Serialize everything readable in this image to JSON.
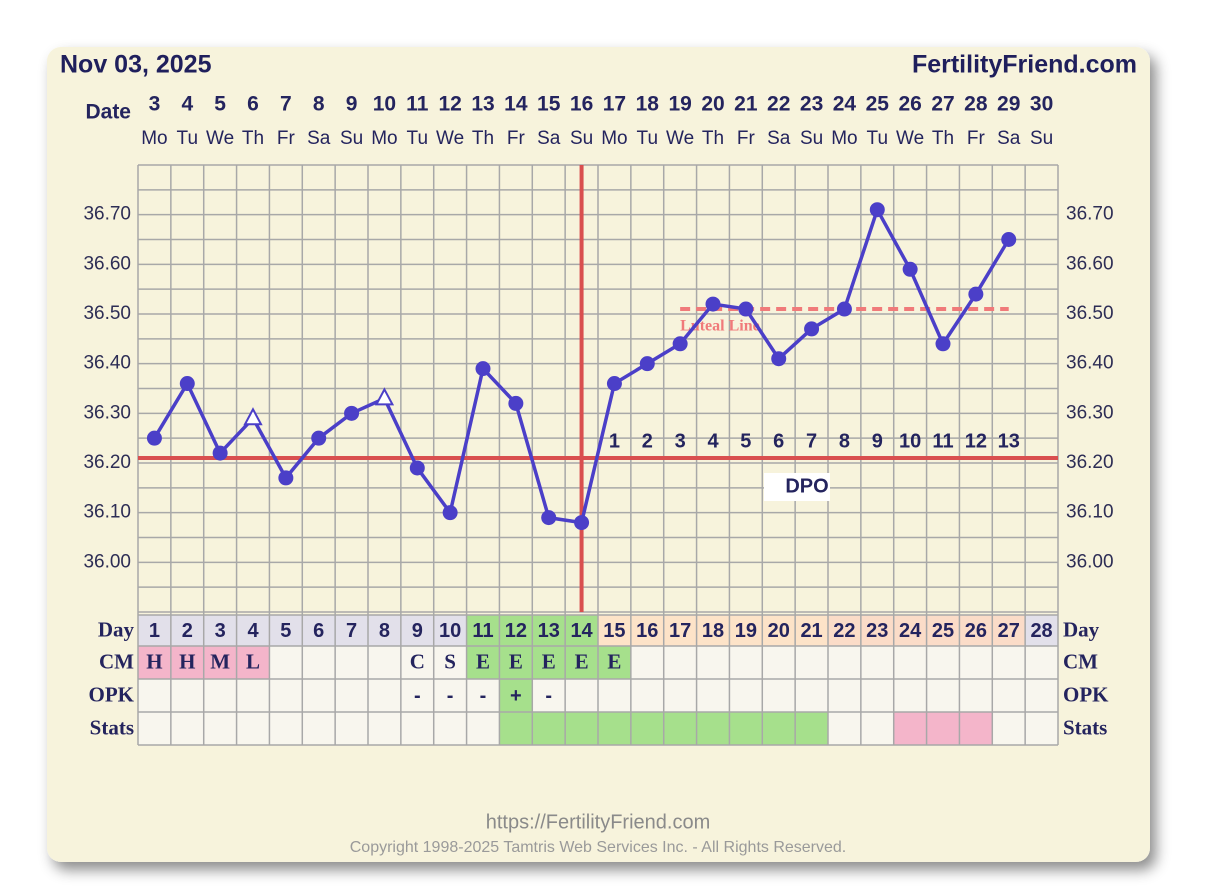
{
  "header": {
    "date": "Nov 03, 2025",
    "site": "FertilityFriend.com"
  },
  "chart_data": {
    "type": "line",
    "x_label": "Date",
    "dates": [
      3,
      4,
      5,
      6,
      7,
      8,
      9,
      10,
      11,
      12,
      13,
      14,
      15,
      16,
      17,
      18,
      19,
      20,
      21,
      22,
      23,
      24,
      25,
      26,
      27,
      28,
      29,
      30
    ],
    "weekdays": [
      "Mo",
      "Tu",
      "We",
      "Th",
      "Fr",
      "Sa",
      "Su",
      "Mo",
      "Tu",
      "We",
      "Th",
      "Fr",
      "Sa",
      "Su",
      "Mo",
      "Tu",
      "We",
      "Th",
      "Fr",
      "Sa",
      "Su",
      "Mo",
      "Tu",
      "We",
      "Th",
      "Fr",
      "Sa",
      "Su"
    ],
    "values": [
      36.25,
      36.36,
      36.22,
      36.29,
      36.17,
      36.25,
      36.3,
      36.33,
      36.19,
      36.1,
      36.39,
      36.32,
      36.09,
      36.08,
      36.36,
      36.4,
      36.44,
      36.52,
      36.51,
      36.41,
      36.47,
      36.51,
      36.71,
      36.59,
      36.44,
      36.54,
      36.65,
      null
    ],
    "markers": [
      "circle",
      "circle",
      "circle",
      "triangle",
      "circle",
      "circle",
      "circle",
      "triangle",
      "circle",
      "circle",
      "circle",
      "circle",
      "circle",
      "circle",
      "circle",
      "circle",
      "circle",
      "circle",
      "circle",
      "circle",
      "circle",
      "circle",
      "circle",
      "circle",
      "circle",
      "circle",
      "circle",
      null
    ],
    "color": "#4b3fc8",
    "ylim": [
      35.9,
      36.8
    ],
    "yticks": [
      {
        "value": 36.0,
        "label": "36.00"
      },
      {
        "value": 36.1,
        "label": "36.10"
      },
      {
        "value": 36.2,
        "label": "36.20"
      },
      {
        "value": 36.3,
        "label": "36.30"
      },
      {
        "value": 36.4,
        "label": "36.40"
      },
      {
        "value": 36.5,
        "label": "36.50"
      },
      {
        "value": 36.6,
        "label": "36.60"
      },
      {
        "value": 36.7,
        "label": "36.70"
      }
    ],
    "grid_lines": [
      35.9,
      35.95,
      36.0,
      36.05,
      36.1,
      36.15,
      36.2,
      36.25,
      36.3,
      36.35,
      36.4,
      36.45,
      36.5,
      36.55,
      36.6,
      36.65,
      36.7,
      36.75,
      36.8
    ],
    "grid_color": "#a8a8a8",
    "coverline": 36.21,
    "ovulation_day": 14,
    "line_color": "#d94f4f",
    "luteal_line": {
      "label": "Luteal Line",
      "value": 36.51,
      "days": [
        17,
        27
      ],
      "color": "#f07a7a"
    },
    "dpo": {
      "label": "DPO",
      "numbers": [
        1,
        2,
        3,
        4,
        5,
        6,
        7,
        8,
        9,
        10,
        11,
        12,
        13
      ]
    },
    "table": [
      {
        "label": "Day",
        "cells": [
          1,
          2,
          3,
          4,
          5,
          6,
          7,
          8,
          9,
          10,
          11,
          12,
          13,
          14,
          15,
          16,
          17,
          18,
          19,
          20,
          21,
          22,
          23,
          24,
          25,
          26,
          27,
          28
        ],
        "colors": [
          "#e2e0ea",
          "#e2e0ea",
          "#e2e0ea",
          "#e2e0ea",
          "#e2e0ea",
          "#e2e0ea",
          "#e2e0ea",
          "#e2e0ea",
          "#e2e0ea",
          "#e2e0ea",
          "#a6e08c",
          "#a6e08c",
          "#a6e08c",
          "#a6e08c",
          "#fde3c8",
          "#fde3c8",
          "#fde3c8",
          "#fde3c8",
          "#fde3c8",
          "#fde3c8",
          "#fde3c8",
          "#fbdcc8",
          "#fbdcc8",
          "#fbdcc8",
          "#fbdcc8",
          "#fbdcc8",
          "#fbdcc8",
          "#e2e0ea"
        ]
      },
      {
        "label": "CM",
        "cells": [
          "H",
          "H",
          "M",
          "L",
          null,
          null,
          null,
          null,
          "C",
          "S",
          "E",
          "E",
          "E",
          "E",
          "E",
          null,
          null,
          null,
          null,
          null,
          null,
          null,
          null,
          null,
          null,
          null,
          null,
          null
        ],
        "colors": [
          "#f4b5ca",
          "#f4b5ca",
          "#f4b5ca",
          "#f4b5ca",
          null,
          null,
          null,
          null,
          null,
          null,
          "#a6e08c",
          "#a6e08c",
          "#a6e08c",
          "#a6e08c",
          "#a6e08c",
          null,
          null,
          null,
          null,
          null,
          null,
          null,
          null,
          null,
          null,
          null,
          null,
          null
        ]
      },
      {
        "label": "OPK",
        "cells": [
          null,
          null,
          null,
          null,
          null,
          null,
          null,
          null,
          "-",
          "-",
          "-",
          "+",
          "-",
          null,
          null,
          null,
          null,
          null,
          null,
          null,
          null,
          null,
          null,
          null,
          null,
          null,
          null,
          null
        ],
        "colors": [
          null,
          null,
          null,
          null,
          null,
          null,
          null,
          null,
          null,
          null,
          null,
          "#a6e08c",
          null,
          null,
          null,
          null,
          null,
          null,
          null,
          null,
          null,
          null,
          null,
          null,
          null,
          null,
          null,
          null
        ]
      },
      {
        "label": "Stats",
        "cells": [
          null,
          null,
          null,
          null,
          null,
          null,
          null,
          null,
          null,
          null,
          null,
          null,
          null,
          null,
          null,
          null,
          null,
          null,
          null,
          null,
          null,
          null,
          null,
          null,
          null,
          null,
          null,
          null
        ],
        "colors": [
          null,
          null,
          null,
          null,
          null,
          null,
          null,
          null,
          null,
          null,
          null,
          "#a6e08c",
          "#a6e08c",
          "#a6e08c",
          "#a6e08c",
          "#a6e08c",
          "#a6e08c",
          "#a6e08c",
          "#a6e08c",
          "#a6e08c",
          "#a6e08c",
          null,
          null,
          "#f4b5ca",
          "#f4b5ca",
          "#f4b5ca",
          null,
          null
        ]
      }
    ]
  },
  "footer": {
    "url": "https://FertilityFriend.com",
    "copyright": "Copyright 1998-2025 Tamtris Web Services Inc. - All Rights Reserved."
  }
}
